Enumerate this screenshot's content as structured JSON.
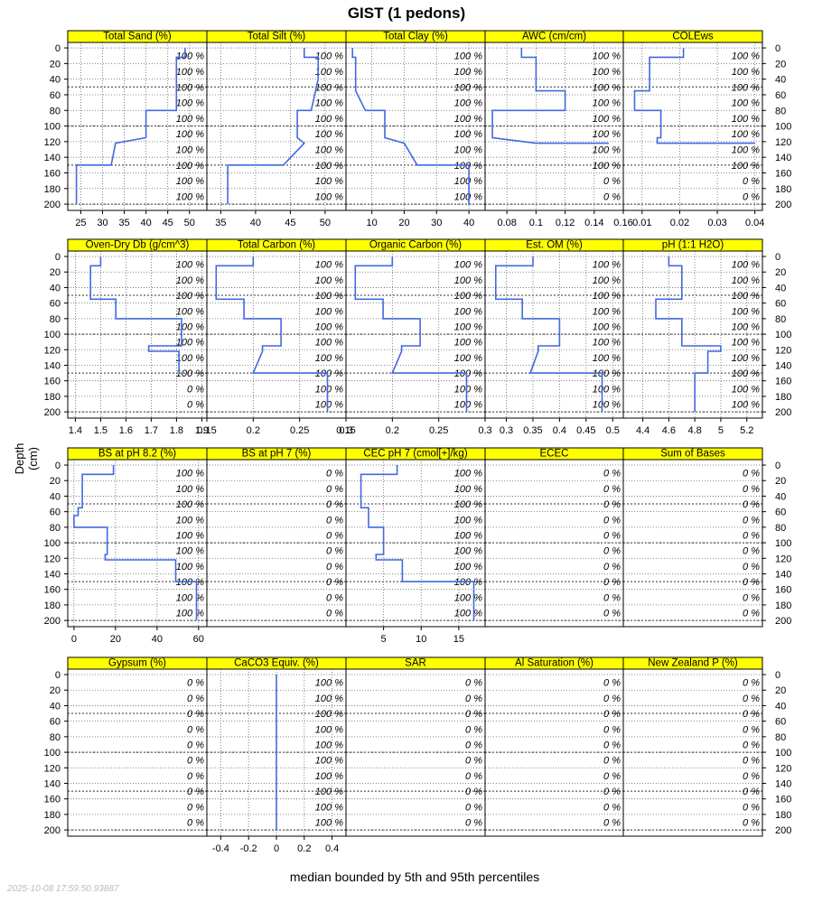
{
  "title": "GIST (1 pedons)",
  "ylabel": "Depth (cm)",
  "xlabel": "median bounded by 5th and 95th percentiles",
  "timestamp": "2025-10-08 17:59:50.93887",
  "colors": {
    "strip": "#ffff00",
    "line": "#4169e1",
    "grid": "#666666"
  },
  "depth_ticks": [
    0,
    20,
    40,
    60,
    80,
    100,
    120,
    140,
    160,
    180,
    200
  ],
  "chart_data": [
    {
      "type": "line",
      "title": "Total Sand (%)",
      "xlim": [
        22,
        54
      ],
      "xticks": [
        25,
        30,
        35,
        40,
        45,
        50
      ],
      "labels": [
        "100 %",
        "100 %",
        "100 %",
        "100 %",
        "100 %",
        "100 %",
        "100 %",
        "100 %",
        "100 %",
        "100 %"
      ],
      "series": [
        {
          "name": "median",
          "x": [
            49,
            49,
            47,
            47,
            47,
            40,
            40,
            33,
            32,
            24,
            24
          ],
          "y": [
            0,
            12,
            12,
            40,
            80,
            80,
            115,
            122,
            150,
            150,
            200
          ]
        }
      ]
    },
    {
      "type": "line",
      "title": "Total Silt (%)",
      "xlim": [
        33,
        53
      ],
      "xticks": [
        35,
        40,
        45,
        50
      ],
      "labels": [
        "100 %",
        "100 %",
        "100 %",
        "100 %",
        "100 %",
        "100 %",
        "100 %",
        "100 %",
        "100 %",
        "100 %"
      ],
      "series": [
        {
          "name": "median",
          "x": [
            47,
            47,
            49,
            49,
            48,
            46,
            46,
            47,
            44,
            36,
            36
          ],
          "y": [
            0,
            12,
            12,
            40,
            80,
            80,
            115,
            122,
            150,
            150,
            200
          ]
        }
      ]
    },
    {
      "type": "line",
      "title": "Total Clay (%)",
      "xlim": [
        2,
        45
      ],
      "xticks": [
        10,
        20,
        30,
        40
      ],
      "labels": [
        "100 %",
        "100 %",
        "100 %",
        "100 %",
        "100 %",
        "100 %",
        "100 %",
        "100 %",
        "100 %",
        "100 %"
      ],
      "series": [
        {
          "name": "median",
          "x": [
            4,
            4,
            5,
            5,
            8,
            14,
            14,
            20,
            24,
            40,
            40
          ],
          "y": [
            0,
            12,
            12,
            55,
            80,
            80,
            115,
            122,
            150,
            150,
            200
          ]
        }
      ]
    },
    {
      "type": "line",
      "title": "AWC (cm/cm)",
      "xlim": [
        0.065,
        0.16
      ],
      "xticks": [
        0.08,
        0.1,
        0.12,
        0.14,
        0.16
      ],
      "labels": [
        "100 %",
        "100 %",
        "100 %",
        "100 %",
        "100 %",
        "100 %",
        "100 %",
        "100 %",
        "0 %",
        "0 %"
      ],
      "series": [
        {
          "name": "median",
          "x": [
            0.09,
            0.09,
            0.1,
            0.1,
            0.12,
            0.12,
            0.07,
            0.07,
            0.1,
            0.15
          ],
          "y": [
            0,
            12,
            12,
            55,
            55,
            80,
            80,
            115,
            122,
            122
          ]
        }
      ]
    },
    {
      "type": "line",
      "title": "COLEws",
      "xlim": [
        0.005,
        0.042
      ],
      "xticks": [
        0.01,
        0.02,
        0.03,
        0.04
      ],
      "labels": [
        "100 %",
        "100 %",
        "100 %",
        "100 %",
        "100 %",
        "100 %",
        "100 %",
        "100 %",
        "0 %",
        "0 %"
      ],
      "series": [
        {
          "name": "median",
          "x": [
            0.021,
            0.021,
            0.012,
            0.012,
            0.008,
            0.008,
            0.012,
            0.015,
            0.015,
            0.014,
            0.014,
            0.04
          ],
          "y": [
            0,
            12,
            12,
            55,
            55,
            80,
            80,
            80,
            115,
            115,
            122,
            122
          ]
        }
      ]
    },
    {
      "type": "line",
      "title": "Oven-Dry Db (g/cm^3)",
      "xlim": [
        1.37,
        1.92
      ],
      "xticks": [
        1.4,
        1.5,
        1.6,
        1.7,
        1.8,
        1.9
      ],
      "labels": [
        "100 %",
        "100 %",
        "100 %",
        "100 %",
        "100 %",
        "100 %",
        "100 %",
        "100 %",
        "0 %",
        "0 %"
      ],
      "series": [
        {
          "name": "median",
          "x": [
            1.5,
            1.5,
            1.46,
            1.46,
            1.56,
            1.56,
            1.82,
            1.82,
            1.69,
            1.69,
            1.81,
            1.81
          ],
          "y": [
            0,
            12,
            12,
            55,
            55,
            80,
            80,
            115,
            115,
            122,
            122,
            150
          ]
        }
      ]
    },
    {
      "type": "line",
      "title": "Total Carbon (%)",
      "xlim": [
        0.15,
        0.3
      ],
      "xticks": [
        0.15,
        0.2,
        0.25,
        0.3
      ],
      "labels": [
        "100 %",
        "100 %",
        "100 %",
        "100 %",
        "100 %",
        "100 %",
        "100 %",
        "100 %",
        "100 %",
        "100 %"
      ],
      "series": [
        {
          "name": "median",
          "x": [
            0.2,
            0.2,
            0.16,
            0.16,
            0.19,
            0.19,
            0.23,
            0.23,
            0.21,
            0.21,
            0.2,
            0.28,
            0.28
          ],
          "y": [
            0,
            12,
            12,
            55,
            55,
            80,
            80,
            115,
            115,
            122,
            150,
            150,
            200
          ]
        }
      ]
    },
    {
      "type": "line",
      "title": "Organic Carbon (%)",
      "xlim": [
        0.15,
        0.3
      ],
      "xticks": [
        0.15,
        0.2,
        0.25,
        0.3
      ],
      "labels": [
        "100 %",
        "100 %",
        "100 %",
        "100 %",
        "100 %",
        "100 %",
        "100 %",
        "100 %",
        "100 %",
        "100 %"
      ],
      "series": [
        {
          "name": "median",
          "x": [
            0.2,
            0.2,
            0.16,
            0.16,
            0.19,
            0.19,
            0.23,
            0.23,
            0.21,
            0.21,
            0.2,
            0.28,
            0.28
          ],
          "y": [
            0,
            12,
            12,
            55,
            55,
            80,
            80,
            115,
            115,
            122,
            150,
            150,
            200
          ]
        }
      ]
    },
    {
      "type": "line",
      "title": "Est. OM (%)",
      "xlim": [
        0.26,
        0.52
      ],
      "xticks": [
        0.3,
        0.35,
        0.4,
        0.45,
        0.5
      ],
      "labels": [
        "100 %",
        "100 %",
        "100 %",
        "100 %",
        "100 %",
        "100 %",
        "100 %",
        "100 %",
        "100 %",
        "100 %"
      ],
      "series": [
        {
          "name": "median",
          "x": [
            0.35,
            0.35,
            0.28,
            0.28,
            0.33,
            0.33,
            0.4,
            0.4,
            0.36,
            0.36,
            0.345,
            0.48,
            0.48
          ],
          "y": [
            0,
            12,
            12,
            55,
            55,
            80,
            80,
            115,
            115,
            122,
            150,
            150,
            200
          ]
        }
      ]
    },
    {
      "type": "line",
      "title": "pH (1:1 H2O)",
      "xlim": [
        4.25,
        5.32
      ],
      "xticks": [
        4.4,
        4.6,
        4.8,
        5.0,
        5.2
      ],
      "labels": [
        "100 %",
        "100 %",
        "100 %",
        "100 %",
        "100 %",
        "100 %",
        "100 %",
        "100 %",
        "100 %",
        "100 %"
      ],
      "series": [
        {
          "name": "median",
          "x": [
            4.6,
            4.6,
            4.7,
            4.7,
            4.5,
            4.5,
            4.7,
            4.7,
            5.0,
            5.0,
            4.9,
            4.9,
            4.8,
            4.8
          ],
          "y": [
            0,
            12,
            12,
            55,
            55,
            80,
            80,
            115,
            115,
            122,
            122,
            150,
            150,
            200
          ]
        }
      ]
    },
    {
      "type": "line",
      "title": "BS at pH 8.2 (%)",
      "xlim": [
        -3,
        64
      ],
      "xticks": [
        0,
        20,
        40,
        60
      ],
      "labels": [
        "100 %",
        "100 %",
        "100 %",
        "100 %",
        "100 %",
        "100 %",
        "100 %",
        "100 %",
        "100 %",
        "100 %"
      ],
      "series": [
        {
          "name": "median",
          "x": [
            19,
            19,
            4,
            4,
            2,
            2,
            0,
            0,
            16,
            16,
            15,
            15,
            49,
            49,
            59,
            59
          ],
          "y": [
            0,
            12,
            12,
            55,
            55,
            65,
            65,
            80,
            80,
            115,
            115,
            122,
            122,
            150,
            150,
            200
          ]
        }
      ]
    },
    {
      "type": "line",
      "title": "BS at pH 7 (%)",
      "xlim": [
        0,
        1
      ],
      "xticks": [],
      "labels": [
        "0 %",
        "0 %",
        "0 %",
        "0 %",
        "0 %",
        "0 %",
        "0 %",
        "0 %",
        "0 %",
        "0 %"
      ],
      "series": []
    },
    {
      "type": "line",
      "title": "CEC pH 7 (cmol[+]/kg)",
      "xlim": [
        0,
        18.5
      ],
      "xticks": [
        5,
        10,
        15
      ],
      "labels": [
        "100 %",
        "100 %",
        "100 %",
        "100 %",
        "100 %",
        "100 %",
        "100 %",
        "100 %",
        "100 %",
        "100 %"
      ],
      "series": [
        {
          "name": "median",
          "x": [
            6.8,
            6.8,
            2,
            2,
            3,
            3,
            5,
            5,
            4,
            4,
            7.5,
            7.5,
            17,
            17
          ],
          "y": [
            0,
            12,
            12,
            55,
            55,
            80,
            80,
            115,
            115,
            122,
            122,
            150,
            150,
            200
          ]
        }
      ]
    },
    {
      "type": "line",
      "title": "ECEC",
      "xlim": [
        0,
        1
      ],
      "xticks": [],
      "labels": [
        "0 %",
        "0 %",
        "0 %",
        "0 %",
        "0 %",
        "0 %",
        "0 %",
        "0 %",
        "0 %",
        "0 %"
      ],
      "series": []
    },
    {
      "type": "line",
      "title": "Sum of Bases",
      "xlim": [
        0,
        1
      ],
      "xticks": [],
      "labels": [
        "0 %",
        "0 %",
        "0 %",
        "0 %",
        "0 %",
        "0 %",
        "0 %",
        "0 %",
        "0 %",
        "0 %"
      ],
      "series": []
    },
    {
      "type": "line",
      "title": "Gypsum (%)",
      "xlim": [
        0,
        1
      ],
      "xticks": [],
      "labels": [
        "0 %",
        "0 %",
        "0 %",
        "0 %",
        "0 %",
        "0 %",
        "0 %",
        "0 %",
        "0 %",
        "0 %"
      ],
      "series": []
    },
    {
      "type": "line",
      "title": "CaCO3 Equiv. (%)",
      "xlim": [
        -0.5,
        0.5
      ],
      "xticks": [
        -0.4,
        -0.2,
        0.0,
        0.2,
        0.4
      ],
      "labels": [
        "100 %",
        "100 %",
        "100 %",
        "100 %",
        "100 %",
        "100 %",
        "100 %",
        "100 %",
        "100 %",
        "100 %"
      ],
      "series": [
        {
          "name": "median",
          "x": [
            0,
            0
          ],
          "y": [
            0,
            200
          ]
        }
      ]
    },
    {
      "type": "line",
      "title": "SAR",
      "xlim": [
        0,
        1
      ],
      "xticks": [],
      "labels": [
        "0 %",
        "0 %",
        "0 %",
        "0 %",
        "0 %",
        "0 %",
        "0 %",
        "0 %",
        "0 %",
        "0 %"
      ],
      "series": []
    },
    {
      "type": "line",
      "title": "Al Saturation (%)",
      "xlim": [
        0,
        1
      ],
      "xticks": [],
      "labels": [
        "0 %",
        "0 %",
        "0 %",
        "0 %",
        "0 %",
        "0 %",
        "0 %",
        "0 %",
        "0 %",
        "0 %"
      ],
      "series": []
    },
    {
      "type": "line",
      "title": "New Zealand P (%)",
      "xlim": [
        0,
        1
      ],
      "xticks": [],
      "labels": [
        "0 %",
        "0 %",
        "0 %",
        "0 %",
        "0 %",
        "0 %",
        "0 %",
        "0 %",
        "0 %",
        "0 %"
      ],
      "series": []
    }
  ]
}
